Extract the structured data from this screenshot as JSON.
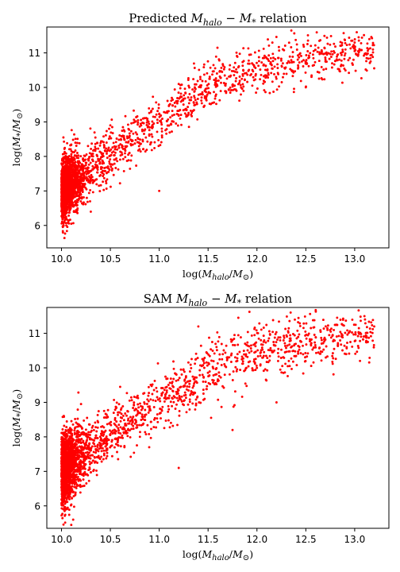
{
  "colors": {
    "points": "#ff0000",
    "axes": "#000000",
    "background": "#ffffff"
  },
  "chart_data": [
    {
      "type": "scatter",
      "title": "Predicted M_halo − M_* relation",
      "title_parts": {
        "prefix": "Predicted ",
        "m1": "M",
        "sub1": "halo",
        "minus": " − ",
        "m2": "M",
        "sub2": "*",
        "suffix": " relation"
      },
      "xlabel": "log(M_halo/M_⊙)",
      "ylabel": "log(M_*/M_⊙)",
      "xlim": [
        9.85,
        13.35
      ],
      "ylim": [
        5.35,
        11.75
      ],
      "xticks": [
        10.0,
        10.5,
        11.0,
        11.5,
        12.0,
        12.5,
        13.0
      ],
      "xtick_labels": [
        "10.0",
        "10.5",
        "11.0",
        "11.5",
        "12.0",
        "12.5",
        "13.0"
      ],
      "yticks": [
        6,
        7,
        8,
        9,
        10,
        11
      ],
      "ytick_labels": [
        "6",
        "7",
        "8",
        "9",
        "10",
        "11"
      ],
      "grid": false,
      "series": [
        {
          "color": "#ff0000",
          "trend_knots": [
            [
              10.0,
              7.0
            ],
            [
              10.3,
              7.6
            ],
            [
              10.6,
              8.3
            ],
            [
              11.0,
              9.0
            ],
            [
              11.5,
              10.0
            ],
            [
              12.0,
              10.5
            ],
            [
              12.5,
              10.8
            ],
            [
              13.2,
              11.1
            ]
          ],
          "scatter_sd": [
            [
              10.0,
              0.45
            ],
            [
              10.5,
              0.35
            ],
            [
              11.0,
              0.32
            ],
            [
              11.5,
              0.35
            ],
            [
              12.0,
              0.35
            ],
            [
              13.2,
              0.3
            ]
          ],
          "points": [
            [
              10.05,
              6.0
            ],
            [
              10.1,
              6.05
            ],
            [
              10.02,
              8.55
            ],
            [
              11.0,
              7.0
            ],
            [
              13.15,
              11.4
            ],
            [
              13.0,
              11.3
            ],
            [
              12.95,
              10.85
            ],
            [
              10.3,
              6.4
            ],
            [
              10.5,
              8.9
            ],
            [
              11.2,
              10.1
            ]
          ]
        }
      ]
    },
    {
      "type": "scatter",
      "title": "SAM M_halo − M_* relation",
      "title_parts": {
        "prefix": "SAM ",
        "m1": "M",
        "sub1": "halo",
        "minus": " − ",
        "m2": "M",
        "sub2": "*",
        "suffix": " relation"
      },
      "xlabel": "log(M_halo/M_⊙)",
      "ylabel": "log(M_*/M_⊙)",
      "xlim": [
        9.85,
        13.35
      ],
      "ylim": [
        5.35,
        11.75
      ],
      "xticks": [
        10.0,
        10.5,
        11.0,
        11.5,
        12.0,
        12.5,
        13.0
      ],
      "xtick_labels": [
        "10.0",
        "10.5",
        "11.0",
        "11.5",
        "12.0",
        "12.5",
        "13.0"
      ],
      "yticks": [
        6,
        7,
        8,
        9,
        10,
        11
      ],
      "ytick_labels": [
        "6",
        "7",
        "8",
        "9",
        "10",
        "11"
      ],
      "grid": false,
      "series": [
        {
          "color": "#ff0000",
          "trend_knots": [
            [
              10.0,
              7.0
            ],
            [
              10.3,
              7.7
            ],
            [
              10.6,
              8.3
            ],
            [
              11.0,
              9.0
            ],
            [
              11.5,
              9.9
            ],
            [
              12.0,
              10.5
            ],
            [
              12.5,
              10.8
            ],
            [
              13.2,
              11.0
            ]
          ],
          "scatter_sd": [
            [
              10.0,
              0.5
            ],
            [
              10.5,
              0.4
            ],
            [
              11.0,
              0.4
            ],
            [
              11.5,
              0.45
            ],
            [
              12.0,
              0.45
            ],
            [
              13.2,
              0.3
            ]
          ],
          "points": [
            [
              10.1,
              5.45
            ],
            [
              10.12,
              5.6
            ],
            [
              10.05,
              5.9
            ],
            [
              11.2,
              7.1
            ],
            [
              11.75,
              8.2
            ],
            [
              11.4,
              11.2
            ],
            [
              13.1,
              11.5
            ],
            [
              13.2,
              11.2
            ],
            [
              10.2,
              8.95
            ],
            [
              10.6,
              9.45
            ],
            [
              12.2,
              9.0
            ]
          ]
        }
      ]
    }
  ]
}
